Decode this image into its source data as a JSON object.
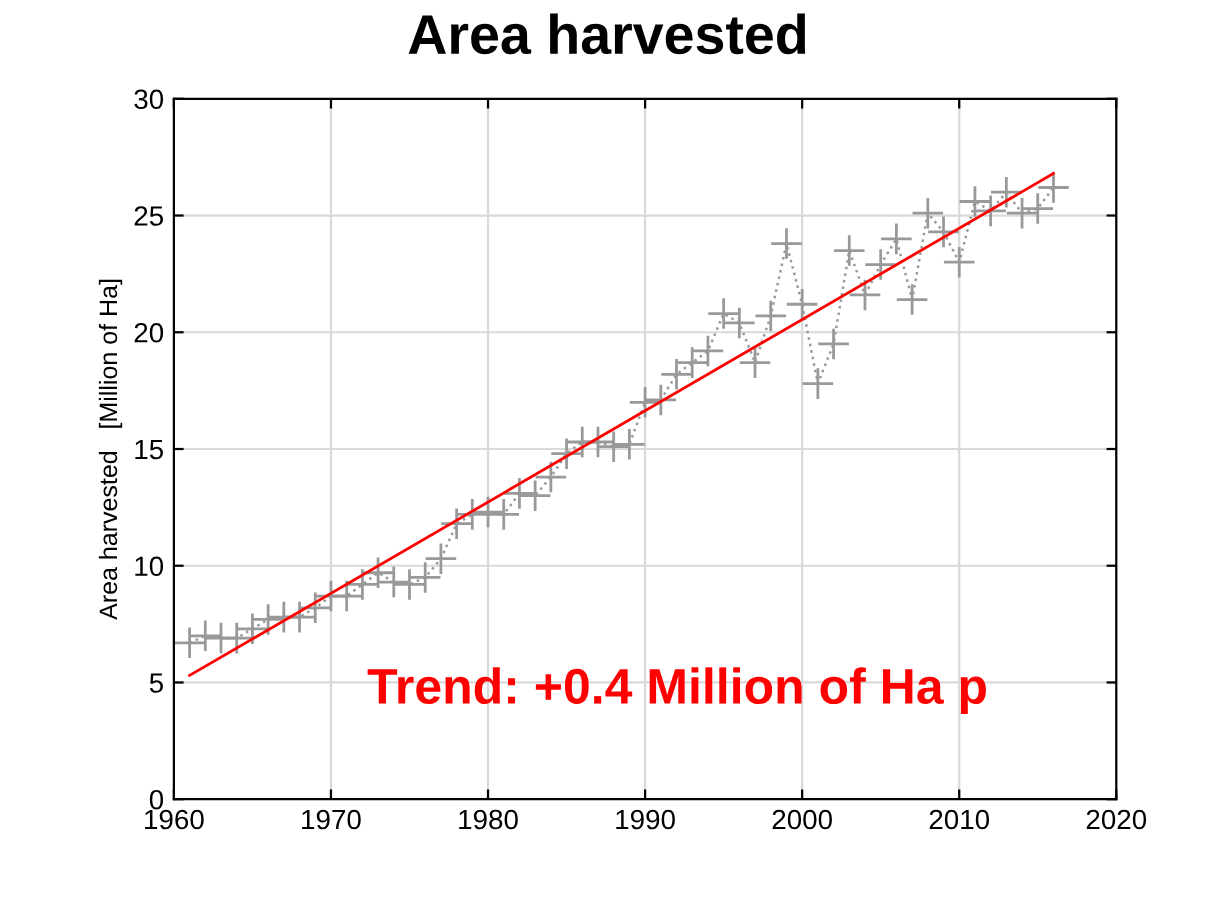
{
  "chart_data": {
    "type": "line",
    "title": "Area harvested",
    "ylabel": "Area harvested   [Million of Ha]",
    "series": [
      {
        "color": "#999999",
        "marker": "cross",
        "line_style": "dotted",
        "x": [
          1961,
          1962,
          1963,
          1964,
          1965,
          1966,
          1967,
          1968,
          1969,
          1970,
          1971,
          1972,
          1973,
          1974,
          1975,
          1976,
          1977,
          1978,
          1979,
          1980,
          1981,
          1982,
          1983,
          1984,
          1985,
          1986,
          1987,
          1988,
          1989,
          1990,
          1991,
          1992,
          1993,
          1994,
          1995,
          1996,
          1997,
          1998,
          1999,
          2000,
          2001,
          2002,
          2003,
          2004,
          2005,
          2006,
          2007,
          2008,
          2009,
          2010,
          2011,
          2012,
          2013,
          2014,
          2015,
          2016
        ],
        "values": [
          6.7,
          7.0,
          6.9,
          6.9,
          7.3,
          7.7,
          7.8,
          7.8,
          8.2,
          8.7,
          8.7,
          9.2,
          9.7,
          9.3,
          9.2,
          9.5,
          10.3,
          11.8,
          12.2,
          12.3,
          12.2,
          13.1,
          13.0,
          13.8,
          14.8,
          15.3,
          15.3,
          15.1,
          15.2,
          17.0,
          17.1,
          18.2,
          18.7,
          19.2,
          20.8,
          20.4,
          18.7,
          20.7,
          23.8,
          21.2,
          17.8,
          19.5,
          23.5,
          21.6,
          22.9,
          24.0,
          21.4,
          25.1,
          24.3,
          23.0,
          25.6,
          25.2,
          26.0,
          25.1,
          25.3,
          26.2
        ]
      },
      {
        "color": "#ff0000",
        "marker": "none",
        "line_style": "solid",
        "x": [
          1961,
          2016
        ],
        "values": [
          5.3,
          26.8
        ]
      }
    ],
    "xlim": [
      1960,
      2020
    ],
    "xticks": [
      1960,
      1970,
      1980,
      1990,
      2000,
      2010,
      2020
    ],
    "ylim": [
      0,
      30
    ],
    "yticks": [
      0,
      5,
      10,
      15,
      20,
      25,
      30
    ],
    "grid": true,
    "annotations": [
      "Trend: +0.4 Million of Ha p"
    ]
  }
}
